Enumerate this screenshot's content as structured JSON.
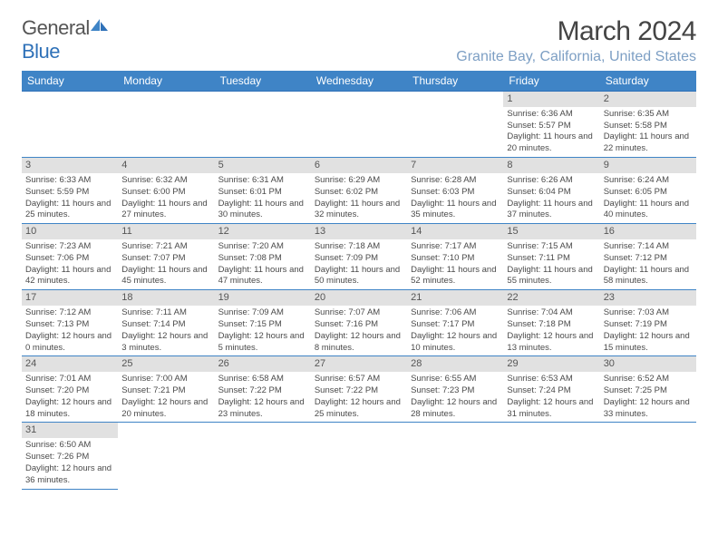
{
  "logo": {
    "general": "General",
    "blue": "Blue"
  },
  "title": "March 2024",
  "location": "Granite Bay, California, United States",
  "colors": {
    "header_bg": "#3f84c6",
    "header_text": "#ffffff",
    "accent": "#2f71b8",
    "location_text": "#7d9fc4",
    "daynum_bg": "#e1e1e1",
    "text": "#4a4a4a"
  },
  "day_headers": [
    "Sunday",
    "Monday",
    "Tuesday",
    "Wednesday",
    "Thursday",
    "Friday",
    "Saturday"
  ],
  "weeks": [
    [
      {
        "n": "",
        "sr": "",
        "ss": "",
        "dl": ""
      },
      {
        "n": "",
        "sr": "",
        "ss": "",
        "dl": ""
      },
      {
        "n": "",
        "sr": "",
        "ss": "",
        "dl": ""
      },
      {
        "n": "",
        "sr": "",
        "ss": "",
        "dl": ""
      },
      {
        "n": "",
        "sr": "",
        "ss": "",
        "dl": ""
      },
      {
        "n": "1",
        "sr": "Sunrise: 6:36 AM",
        "ss": "Sunset: 5:57 PM",
        "dl": "Daylight: 11 hours and 20 minutes."
      },
      {
        "n": "2",
        "sr": "Sunrise: 6:35 AM",
        "ss": "Sunset: 5:58 PM",
        "dl": "Daylight: 11 hours and 22 minutes."
      }
    ],
    [
      {
        "n": "3",
        "sr": "Sunrise: 6:33 AM",
        "ss": "Sunset: 5:59 PM",
        "dl": "Daylight: 11 hours and 25 minutes."
      },
      {
        "n": "4",
        "sr": "Sunrise: 6:32 AM",
        "ss": "Sunset: 6:00 PM",
        "dl": "Daylight: 11 hours and 27 minutes."
      },
      {
        "n": "5",
        "sr": "Sunrise: 6:31 AM",
        "ss": "Sunset: 6:01 PM",
        "dl": "Daylight: 11 hours and 30 minutes."
      },
      {
        "n": "6",
        "sr": "Sunrise: 6:29 AM",
        "ss": "Sunset: 6:02 PM",
        "dl": "Daylight: 11 hours and 32 minutes."
      },
      {
        "n": "7",
        "sr": "Sunrise: 6:28 AM",
        "ss": "Sunset: 6:03 PM",
        "dl": "Daylight: 11 hours and 35 minutes."
      },
      {
        "n": "8",
        "sr": "Sunrise: 6:26 AM",
        "ss": "Sunset: 6:04 PM",
        "dl": "Daylight: 11 hours and 37 minutes."
      },
      {
        "n": "9",
        "sr": "Sunrise: 6:24 AM",
        "ss": "Sunset: 6:05 PM",
        "dl": "Daylight: 11 hours and 40 minutes."
      }
    ],
    [
      {
        "n": "10",
        "sr": "Sunrise: 7:23 AM",
        "ss": "Sunset: 7:06 PM",
        "dl": "Daylight: 11 hours and 42 minutes."
      },
      {
        "n": "11",
        "sr": "Sunrise: 7:21 AM",
        "ss": "Sunset: 7:07 PM",
        "dl": "Daylight: 11 hours and 45 minutes."
      },
      {
        "n": "12",
        "sr": "Sunrise: 7:20 AM",
        "ss": "Sunset: 7:08 PM",
        "dl": "Daylight: 11 hours and 47 minutes."
      },
      {
        "n": "13",
        "sr": "Sunrise: 7:18 AM",
        "ss": "Sunset: 7:09 PM",
        "dl": "Daylight: 11 hours and 50 minutes."
      },
      {
        "n": "14",
        "sr": "Sunrise: 7:17 AM",
        "ss": "Sunset: 7:10 PM",
        "dl": "Daylight: 11 hours and 52 minutes."
      },
      {
        "n": "15",
        "sr": "Sunrise: 7:15 AM",
        "ss": "Sunset: 7:11 PM",
        "dl": "Daylight: 11 hours and 55 minutes."
      },
      {
        "n": "16",
        "sr": "Sunrise: 7:14 AM",
        "ss": "Sunset: 7:12 PM",
        "dl": "Daylight: 11 hours and 58 minutes."
      }
    ],
    [
      {
        "n": "17",
        "sr": "Sunrise: 7:12 AM",
        "ss": "Sunset: 7:13 PM",
        "dl": "Daylight: 12 hours and 0 minutes."
      },
      {
        "n": "18",
        "sr": "Sunrise: 7:11 AM",
        "ss": "Sunset: 7:14 PM",
        "dl": "Daylight: 12 hours and 3 minutes."
      },
      {
        "n": "19",
        "sr": "Sunrise: 7:09 AM",
        "ss": "Sunset: 7:15 PM",
        "dl": "Daylight: 12 hours and 5 minutes."
      },
      {
        "n": "20",
        "sr": "Sunrise: 7:07 AM",
        "ss": "Sunset: 7:16 PM",
        "dl": "Daylight: 12 hours and 8 minutes."
      },
      {
        "n": "21",
        "sr": "Sunrise: 7:06 AM",
        "ss": "Sunset: 7:17 PM",
        "dl": "Daylight: 12 hours and 10 minutes."
      },
      {
        "n": "22",
        "sr": "Sunrise: 7:04 AM",
        "ss": "Sunset: 7:18 PM",
        "dl": "Daylight: 12 hours and 13 minutes."
      },
      {
        "n": "23",
        "sr": "Sunrise: 7:03 AM",
        "ss": "Sunset: 7:19 PM",
        "dl": "Daylight: 12 hours and 15 minutes."
      }
    ],
    [
      {
        "n": "24",
        "sr": "Sunrise: 7:01 AM",
        "ss": "Sunset: 7:20 PM",
        "dl": "Daylight: 12 hours and 18 minutes."
      },
      {
        "n": "25",
        "sr": "Sunrise: 7:00 AM",
        "ss": "Sunset: 7:21 PM",
        "dl": "Daylight: 12 hours and 20 minutes."
      },
      {
        "n": "26",
        "sr": "Sunrise: 6:58 AM",
        "ss": "Sunset: 7:22 PM",
        "dl": "Daylight: 12 hours and 23 minutes."
      },
      {
        "n": "27",
        "sr": "Sunrise: 6:57 AM",
        "ss": "Sunset: 7:22 PM",
        "dl": "Daylight: 12 hours and 25 minutes."
      },
      {
        "n": "28",
        "sr": "Sunrise: 6:55 AM",
        "ss": "Sunset: 7:23 PM",
        "dl": "Daylight: 12 hours and 28 minutes."
      },
      {
        "n": "29",
        "sr": "Sunrise: 6:53 AM",
        "ss": "Sunset: 7:24 PM",
        "dl": "Daylight: 12 hours and 31 minutes."
      },
      {
        "n": "30",
        "sr": "Sunrise: 6:52 AM",
        "ss": "Sunset: 7:25 PM",
        "dl": "Daylight: 12 hours and 33 minutes."
      }
    ],
    [
      {
        "n": "31",
        "sr": "Sunrise: 6:50 AM",
        "ss": "Sunset: 7:26 PM",
        "dl": "Daylight: 12 hours and 36 minutes."
      },
      {
        "n": "",
        "sr": "",
        "ss": "",
        "dl": ""
      },
      {
        "n": "",
        "sr": "",
        "ss": "",
        "dl": ""
      },
      {
        "n": "",
        "sr": "",
        "ss": "",
        "dl": ""
      },
      {
        "n": "",
        "sr": "",
        "ss": "",
        "dl": ""
      },
      {
        "n": "",
        "sr": "",
        "ss": "",
        "dl": ""
      },
      {
        "n": "",
        "sr": "",
        "ss": "",
        "dl": ""
      }
    ]
  ]
}
